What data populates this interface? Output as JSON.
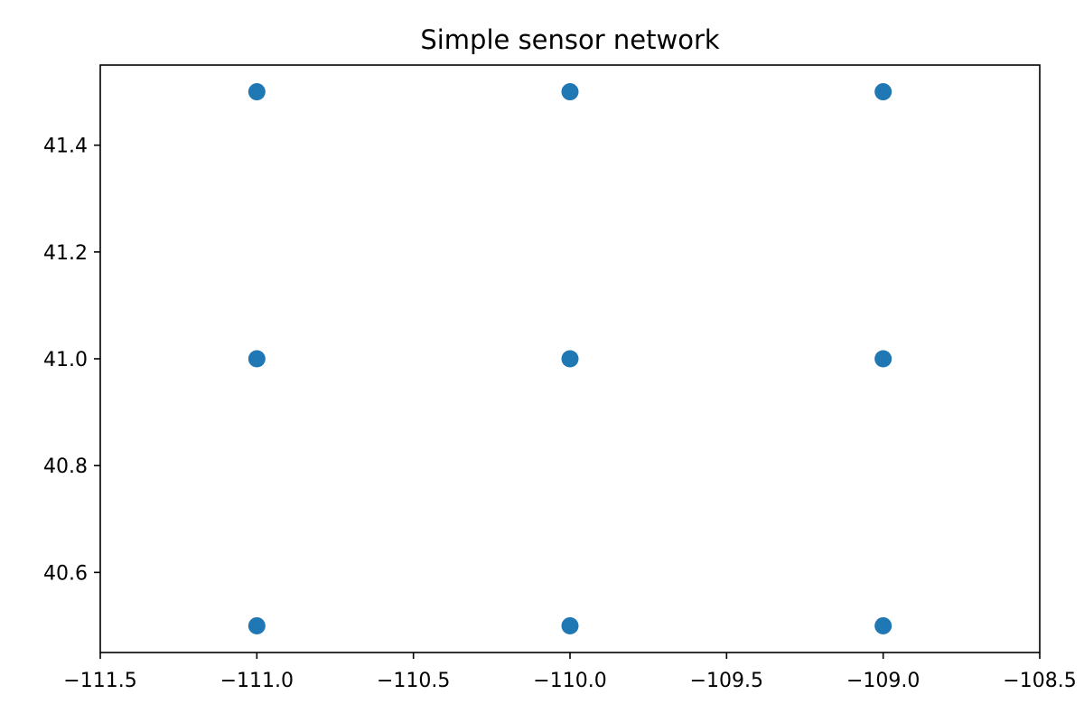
{
  "chart_data": {
    "type": "scatter",
    "title": "Simple sensor network",
    "xlabel": "",
    "ylabel": "",
    "xlim": [
      -111.5,
      -108.5
    ],
    "ylim": [
      40.45,
      41.55
    ],
    "xticks": [
      -111.5,
      -111.0,
      -110.5,
      -110.0,
      -109.5,
      -109.0,
      -108.5
    ],
    "xtick_labels": [
      "−111.5",
      "−111.0",
      "−110.5",
      "−110.0",
      "−109.5",
      "−109.0",
      "−108.5"
    ],
    "yticks": [
      40.6,
      40.8,
      41.0,
      41.2,
      41.4
    ],
    "ytick_labels": [
      "40.6",
      "40.8",
      "41.0",
      "41.2",
      "41.4"
    ],
    "grid": false,
    "series": [
      {
        "x": [
          -111.0,
          -110.0,
          -109.0,
          -111.0,
          -110.0,
          -109.0,
          -111.0,
          -110.0,
          -109.0
        ],
        "y": [
          41.5,
          41.5,
          41.5,
          41.0,
          41.0,
          41.0,
          40.5,
          40.5,
          40.5
        ],
        "color": "#1f77b4"
      }
    ]
  }
}
